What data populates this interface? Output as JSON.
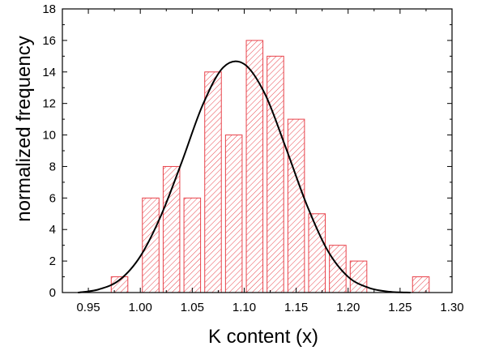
{
  "chart_data": {
    "type": "bar",
    "title": "",
    "xlabel": "K content (x)",
    "ylabel": "normalized frequency",
    "xlim": [
      0.925,
      1.3
    ],
    "ylim": [
      0,
      18
    ],
    "x_ticks": [
      "0.95",
      "1.00",
      "1.05",
      "1.10",
      "1.15",
      "1.20",
      "1.25",
      "1.30"
    ],
    "y_ticks": [
      "0",
      "2",
      "4",
      "6",
      "8",
      "10",
      "12",
      "14",
      "16",
      "18"
    ],
    "bin_width": 0.02,
    "series": [
      {
        "type": "bar",
        "style": "hatched",
        "x": [
          0.98,
          1.01,
          1.03,
          1.05,
          1.07,
          1.09,
          1.11,
          1.13,
          1.15,
          1.17,
          1.19,
          1.21,
          1.27
        ],
        "values": [
          1,
          6,
          8,
          6,
          14,
          10,
          16,
          15,
          11,
          5,
          3,
          2,
          1
        ]
      },
      {
        "type": "line",
        "style": "gaussian fit",
        "x": [
          0.94,
          0.96,
          0.98,
          1.0,
          1.02,
          1.04,
          1.06,
          1.08,
          1.1,
          1.12,
          1.14,
          1.16,
          1.18,
          1.2,
          1.22,
          1.24,
          1.26
        ],
        "values": [
          0.0,
          0.2,
          0.8,
          2.3,
          4.9,
          8.3,
          11.9,
          14.3,
          14.5,
          12.6,
          9.2,
          5.6,
          2.7,
          1.0,
          0.3,
          0.05,
          0.0
        ]
      }
    ],
    "grid": false,
    "legend": "none",
    "colors": {
      "bars": "#e8424a",
      "fit_line": "#000000",
      "axes": "#000000"
    }
  }
}
